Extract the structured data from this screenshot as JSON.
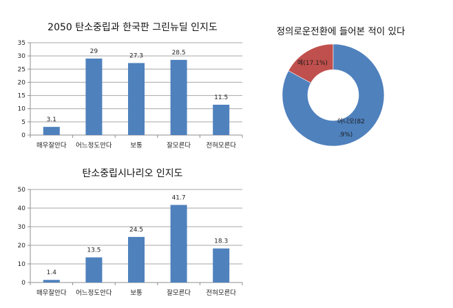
{
  "colors": {
    "bar": "#4F81BD",
    "yes_slice": "#C0504D",
    "no_slice": "#4F81BD",
    "grid": "#A6A6A6",
    "axis": "#8C8C8C"
  },
  "chart_data": [
    {
      "type": "bar",
      "title": "2050 탄소중립과 한국판 그린뉴딜 인지도",
      "categories": [
        "매우잘안다",
        "어느정도안다",
        "보통",
        "잘모른다",
        "전혀모른다"
      ],
      "values": [
        3.1,
        29,
        27.3,
        28.5,
        11.5
      ],
      "value_labels": [
        "3.1",
        "29",
        "27.3",
        "28.5",
        "11.5"
      ],
      "xlabel": "",
      "ylabel": "",
      "ylim": [
        0,
        35
      ],
      "yticks": [
        0,
        5,
        10,
        15,
        20,
        25,
        30,
        35
      ],
      "grid": true,
      "legend": null
    },
    {
      "type": "bar",
      "title": "탄소중립시나리오 인지도",
      "categories": [
        "매우잘안다",
        "어느정도안다",
        "보통",
        "잘모른다",
        "전혀모른다"
      ],
      "values": [
        1.4,
        13.5,
        24.5,
        41.7,
        18.3
      ],
      "value_labels": [
        "1.4",
        "13.5",
        "24.5",
        "41.7",
        "18.3"
      ],
      "xlabel": "",
      "ylabel": "",
      "ylim": [
        0,
        50
      ],
      "yticks": [
        0,
        10,
        20,
        30,
        40,
        50
      ],
      "grid": true,
      "legend": null
    },
    {
      "type": "pie",
      "subtype": "donut",
      "title": "정의로운전환에 들어본 적이 있다",
      "categories": [
        "예",
        "아니오"
      ],
      "values": [
        17.1,
        82.9
      ],
      "slice_labels": [
        "예(17.1%)",
        "아니오(82.9%)"
      ],
      "slice_label_lines": [
        [
          "예(17.1%)"
        ],
        [
          "아니오(82",
          ".9%)"
        ]
      ],
      "legend": null
    }
  ]
}
